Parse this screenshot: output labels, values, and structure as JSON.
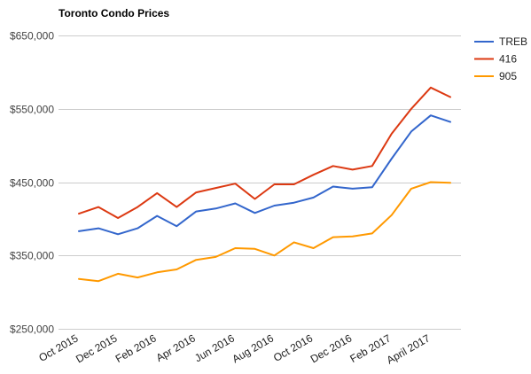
{
  "chart_data": {
    "type": "line",
    "title": "Toronto Condo Prices",
    "xlabel": "",
    "ylabel": "",
    "ylim": [
      250000,
      650000
    ],
    "y_ticks": [
      250000,
      350000,
      450000,
      550000,
      650000
    ],
    "y_tick_labels": [
      "$250,000",
      "$350,000",
      "$450,000",
      "$550,000",
      "$650,000"
    ],
    "x": [
      "Oct 2015",
      "Nov 2015",
      "Dec 2015",
      "Jan 2016",
      "Feb 2016",
      "Mar 2016",
      "Apr 2016",
      "May 2016",
      "Jun 2016",
      "Jul 2016",
      "Aug 2016",
      "Sep 2016",
      "Oct 2016",
      "Nov 2016",
      "Dec 2016",
      "Jan 2017",
      "Feb 2017",
      "Mar 2017",
      "April 2017",
      "May 2017"
    ],
    "x_tick_labels": [
      "Oct 2015",
      "Dec 2015",
      "Feb 2016",
      "Apr 2016",
      "Jun 2016",
      "Aug 2016",
      "Oct 2016",
      "Dec 2016",
      "Feb 2017",
      "April 2017"
    ],
    "grid": true,
    "legend_position": "right",
    "series": [
      {
        "name": "TREB",
        "color": "#3366cc",
        "values": [
          383000,
          387000,
          379000,
          387000,
          404000,
          390000,
          410000,
          414000,
          421000,
          408000,
          418000,
          422000,
          429000,
          444000,
          441000,
          443000,
          482000,
          519000,
          541000,
          532000
        ]
      },
      {
        "name": "416",
        "color": "#dc3912",
        "values": [
          407000,
          416000,
          401000,
          416000,
          435000,
          416000,
          436000,
          442000,
          448000,
          427000,
          447000,
          447000,
          460000,
          472000,
          467000,
          472000,
          516000,
          550000,
          579000,
          566000
        ]
      },
      {
        "name": "905",
        "color": "#ff9900",
        "values": [
          318000,
          315000,
          325000,
          320000,
          327000,
          331000,
          344000,
          348000,
          360000,
          359000,
          350000,
          368000,
          360000,
          375000,
          376000,
          380000,
          405000,
          441000,
          450000,
          449000
        ]
      }
    ]
  }
}
